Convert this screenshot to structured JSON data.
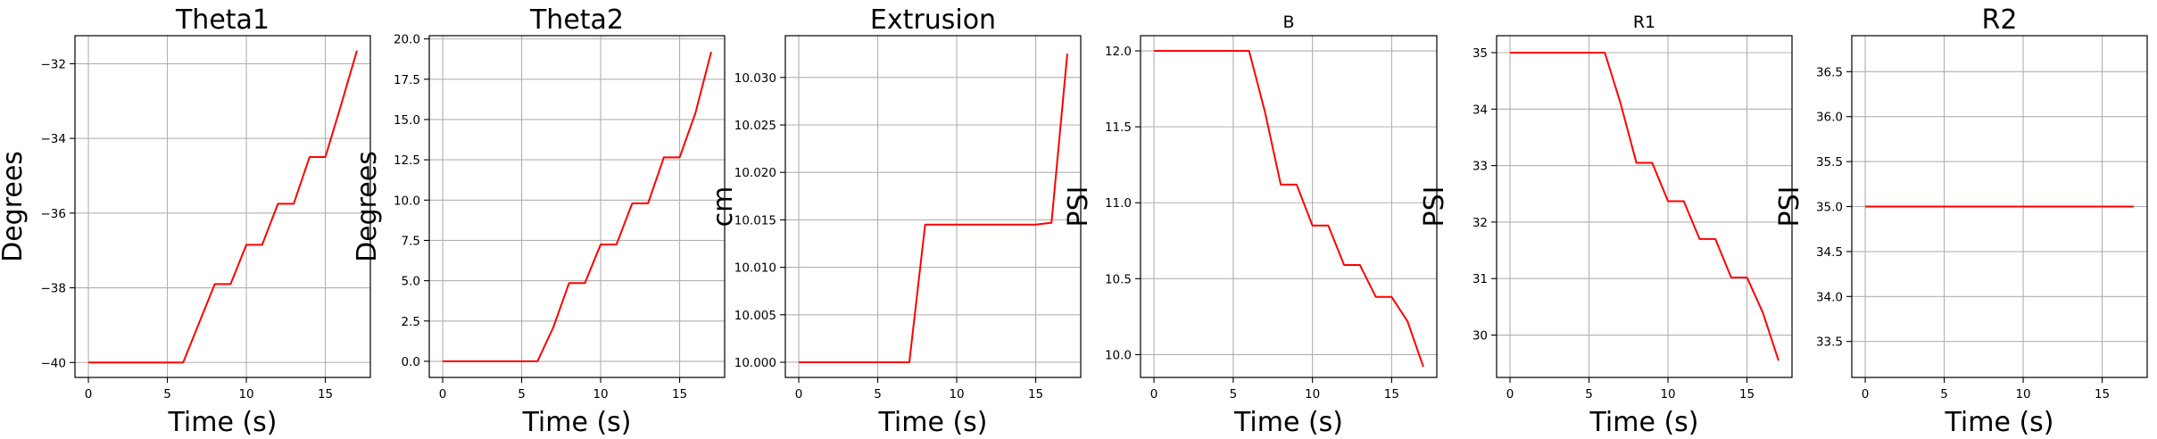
{
  "colors": {
    "series": "#ff0000",
    "grid": "#b0b0b0",
    "axis": "#000000",
    "background": "#ffffff"
  },
  "chart_data": [
    {
      "type": "line",
      "title": "Theta1",
      "xlabel": "Time (s)",
      "ylabel": "Degrees",
      "xlim": [
        -0.85,
        17.85
      ],
      "ylim": [
        -40.4,
        -31.25
      ],
      "xticks": [
        0,
        5,
        10,
        15
      ],
      "xtick_labels": [
        "0",
        "5",
        "10",
        "15"
      ],
      "yticks": [
        -40,
        -38,
        -36,
        -34,
        -32
      ],
      "ytick_labels": [
        "−40",
        "−38",
        "−36",
        "−34",
        "−32"
      ],
      "grid": true,
      "x": [
        0,
        1,
        2,
        3,
        4,
        5,
        6,
        7,
        8,
        9,
        10,
        11,
        12,
        13,
        14,
        15,
        16,
        17
      ],
      "series": [
        {
          "values": [
            -40,
            -40,
            -40,
            -40,
            -40,
            -40,
            -40,
            -38.95,
            -37.9,
            -37.9,
            -36.85,
            -36.85,
            -35.75,
            -35.75,
            -34.5,
            -34.5,
            -33.1,
            -31.65
          ]
        }
      ]
    },
    {
      "type": "line",
      "title": "Theta2",
      "xlabel": "Time (s)",
      "ylabel": "Degrees",
      "xlim": [
        -0.85,
        17.85
      ],
      "ylim": [
        -1.0,
        20.2
      ],
      "xticks": [
        0,
        5,
        10,
        15
      ],
      "xtick_labels": [
        "0",
        "5",
        "10",
        "15"
      ],
      "yticks": [
        0,
        2.5,
        5,
        7.5,
        10,
        12.5,
        15,
        17.5,
        20
      ],
      "ytick_labels": [
        "0.0",
        "2.5",
        "5.0",
        "7.5",
        "10.0",
        "12.5",
        "15.0",
        "17.5",
        "20.0"
      ],
      "grid": true,
      "x": [
        0,
        1,
        2,
        3,
        4,
        5,
        6,
        7,
        8,
        9,
        10,
        11,
        12,
        13,
        14,
        15,
        16,
        17
      ],
      "series": [
        {
          "values": [
            0,
            0,
            0,
            0,
            0,
            0,
            0,
            2.1,
            4.85,
            4.85,
            7.25,
            7.25,
            9.8,
            9.8,
            12.65,
            12.65,
            15.4,
            19.2
          ]
        }
      ]
    },
    {
      "type": "line",
      "title": "Extrusion",
      "xlabel": "Time (s)",
      "ylabel": "cm",
      "xlim": [
        -0.85,
        17.85
      ],
      "ylim": [
        9.9984,
        10.0344
      ],
      "xticks": [
        0,
        5,
        10,
        15
      ],
      "xtick_labels": [
        "0",
        "5",
        "10",
        "15"
      ],
      "yticks": [
        10.0,
        10.005,
        10.01,
        10.015,
        10.02,
        10.025,
        10.03
      ],
      "ytick_labels": [
        "10.000",
        "10.005",
        "10.010",
        "10.015",
        "10.020",
        "10.025",
        "10.030"
      ],
      "grid": true,
      "x": [
        0,
        1,
        2,
        3,
        4,
        5,
        6,
        7,
        8,
        9,
        10,
        11,
        12,
        13,
        14,
        15,
        16,
        17
      ],
      "series": [
        {
          "values": [
            10.0,
            10.0,
            10.0,
            10.0,
            10.0,
            10.0,
            10.0,
            10.0,
            10.0145,
            10.0145,
            10.0145,
            10.0145,
            10.0145,
            10.0145,
            10.0145,
            10.0145,
            10.0147,
            10.0325
          ]
        }
      ]
    },
    {
      "type": "line",
      "title": "B",
      "xlabel": "Time (s)",
      "ylabel": "PSI",
      "xlim": [
        -0.85,
        17.85
      ],
      "ylim": [
        9.85,
        12.1
      ],
      "xticks": [
        0,
        5,
        10,
        15
      ],
      "xtick_labels": [
        "0",
        "5",
        "10",
        "15"
      ],
      "yticks": [
        10.0,
        10.5,
        11.0,
        11.5,
        12.0
      ],
      "ytick_labels": [
        "10.0",
        "10.5",
        "11.0",
        "11.5",
        "12.0"
      ],
      "grid": true,
      "x": [
        0,
        1,
        2,
        3,
        4,
        5,
        6,
        7,
        8,
        9,
        10,
        11,
        12,
        13,
        14,
        15,
        16,
        17
      ],
      "series": [
        {
          "values": [
            12.0,
            12.0,
            12.0,
            12.0,
            12.0,
            12.0,
            12.0,
            11.6,
            11.12,
            11.12,
            10.85,
            10.85,
            10.59,
            10.59,
            10.38,
            10.38,
            10.22,
            9.92
          ]
        }
      ]
    },
    {
      "type": "line",
      "title": "R1",
      "xlabel": "Time (s)",
      "ylabel": "PSI",
      "xlim": [
        -0.85,
        17.85
      ],
      "ylim": [
        29.25,
        35.3
      ],
      "xticks": [
        0,
        5,
        10,
        15
      ],
      "xtick_labels": [
        "0",
        "5",
        "10",
        "15"
      ],
      "yticks": [
        30,
        31,
        32,
        33,
        34,
        35
      ],
      "ytick_labels": [
        "30",
        "31",
        "32",
        "33",
        "34",
        "35"
      ],
      "grid": true,
      "x": [
        0,
        1,
        2,
        3,
        4,
        5,
        6,
        7,
        8,
        9,
        10,
        11,
        12,
        13,
        14,
        15,
        16,
        17
      ],
      "series": [
        {
          "values": [
            35,
            35,
            35,
            35,
            35,
            35,
            35,
            34.1,
            33.05,
            33.05,
            32.37,
            32.37,
            31.7,
            31.7,
            31.02,
            31.02,
            30.4,
            29.55
          ]
        }
      ]
    },
    {
      "type": "line",
      "title": "R2",
      "xlabel": "Time (s)",
      "ylabel": "PSI",
      "xlim": [
        -0.85,
        17.85
      ],
      "ylim": [
        33.1,
        36.9
      ],
      "xticks": [
        0,
        5,
        10,
        15
      ],
      "xtick_labels": [
        "0",
        "5",
        "10",
        "15"
      ],
      "yticks": [
        33.5,
        34.0,
        34.5,
        35.0,
        35.5,
        36.0,
        36.5
      ],
      "ytick_labels": [
        "33.5",
        "34.0",
        "34.5",
        "35.0",
        "35.5",
        "36.0",
        "36.5"
      ],
      "grid": true,
      "x": [
        0,
        1,
        2,
        3,
        4,
        5,
        6,
        7,
        8,
        9,
        10,
        11,
        12,
        13,
        14,
        15,
        16,
        17
      ],
      "series": [
        {
          "values": [
            35,
            35,
            35,
            35,
            35,
            35,
            35,
            35,
            35,
            35,
            35,
            35,
            35,
            35,
            35,
            35,
            35,
            35
          ]
        }
      ]
    }
  ]
}
